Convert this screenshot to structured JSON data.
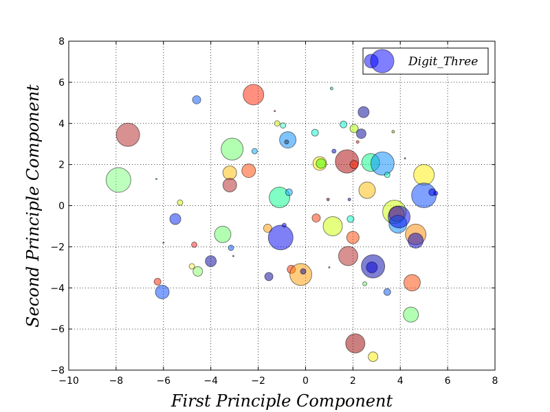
{
  "chart_data": {
    "type": "scatter",
    "xlabel": "First Principle Component",
    "ylabel": "Second Principle Component",
    "xlim": [
      -10,
      8
    ],
    "ylim": [
      -8,
      8
    ],
    "xticks": [
      "−10",
      "−8",
      "−6",
      "−4",
      "−2",
      "0",
      "2",
      "4",
      "6",
      "8"
    ],
    "yticks": [
      "−8",
      "−6",
      "−4",
      "−2",
      "0",
      "2",
      "4",
      "6",
      "8"
    ],
    "grid": true,
    "legend": {
      "position": "top-right",
      "entries": [
        "Digit_Three"
      ]
    },
    "legend_color": "#0000ff",
    "points": [
      {
        "x": -7.9,
        "y": 1.25,
        "s": 18,
        "c": "#7cff7c"
      },
      {
        "x": -7.5,
        "y": 3.45,
        "s": 17,
        "c": "#b22222"
      },
      {
        "x": -6.3,
        "y": 1.3,
        "s": 1,
        "c": "#20b2aa"
      },
      {
        "x": -6.25,
        "y": -3.7,
        "s": 5,
        "c": "#ff2200"
      },
      {
        "x": -6.05,
        "y": -4.2,
        "s": 10,
        "c": "#0044ff"
      },
      {
        "x": -6.0,
        "y": -1.8,
        "s": 1,
        "c": "#555555"
      },
      {
        "x": -5.5,
        "y": -0.65,
        "s": 8,
        "c": "#0022ee"
      },
      {
        "x": -5.3,
        "y": 0.15,
        "s": 4,
        "c": "#ccff00"
      },
      {
        "x": -4.8,
        "y": -2.95,
        "s": 4,
        "c": "#ffff44"
      },
      {
        "x": -4.7,
        "y": -1.9,
        "s": 4,
        "c": "#ff2222"
      },
      {
        "x": -4.6,
        "y": 5.15,
        "s": 6,
        "c": "#0055ff"
      },
      {
        "x": -4.55,
        "y": -3.2,
        "s": 7,
        "c": "#88ff66"
      },
      {
        "x": -4.0,
        "y": -2.7,
        "s": 8,
        "c": "#000099"
      },
      {
        "x": -3.5,
        "y": -1.4,
        "s": 12,
        "c": "#66ff66"
      },
      {
        "x": -3.15,
        "y": -2.05,
        "s": 4,
        "c": "#0055ff"
      },
      {
        "x": -3.05,
        "y": -2.45,
        "s": 1,
        "c": "#333333"
      },
      {
        "x": -3.2,
        "y": 1.6,
        "s": 10,
        "c": "#ffbb00"
      },
      {
        "x": -3.2,
        "y": 1.0,
        "s": 10,
        "c": "#b22222"
      },
      {
        "x": -3.1,
        "y": 2.75,
        "s": 16,
        "c": "#66ff66"
      },
      {
        "x": -2.4,
        "y": 1.7,
        "s": 10,
        "c": "#ff4400"
      },
      {
        "x": -2.2,
        "y": 5.4,
        "s": 15,
        "c": "#ff2200"
      },
      {
        "x": -2.15,
        "y": 2.65,
        "s": 4,
        "c": "#00aaff"
      },
      {
        "x": -1.6,
        "y": -1.1,
        "s": 6,
        "c": "#ff9900"
      },
      {
        "x": -1.55,
        "y": -3.45,
        "s": 6,
        "c": "#000099"
      },
      {
        "x": -1.3,
        "y": 4.6,
        "s": 1,
        "c": "#aa0000"
      },
      {
        "x": -1.2,
        "y": 4.0,
        "s": 4,
        "c": "#ccff00"
      },
      {
        "x": -1.1,
        "y": 0.4,
        "s": 15,
        "c": "#00ff88"
      },
      {
        "x": -1.05,
        "y": -1.55,
        "s": 18,
        "c": "#0000ee"
      },
      {
        "x": -0.95,
        "y": 3.9,
        "s": 4,
        "c": "#33ffcc"
      },
      {
        "x": -0.9,
        "y": -0.95,
        "s": 3,
        "c": "#0000ff"
      },
      {
        "x": -0.75,
        "y": 3.2,
        "s": 12,
        "c": "#0088ff"
      },
      {
        "x": -0.8,
        "y": 3.1,
        "s": 3,
        "c": "#333333"
      },
      {
        "x": -0.7,
        "y": 0.65,
        "s": 5,
        "c": "#00aaff"
      },
      {
        "x": -0.6,
        "y": -3.1,
        "s": 6,
        "c": "#ff2200"
      },
      {
        "x": -0.2,
        "y": -3.35,
        "s": 16,
        "c": "#ff9900"
      },
      {
        "x": -0.1,
        "y": -3.2,
        "s": 4,
        "c": "#0000aa"
      },
      {
        "x": 0.4,
        "y": 3.55,
        "s": 5,
        "c": "#00ffcc"
      },
      {
        "x": 0.45,
        "y": -0.6,
        "s": 6,
        "c": "#ff3300"
      },
      {
        "x": 0.6,
        "y": 2.05,
        "s": 10,
        "c": "#ffee00"
      },
      {
        "x": 0.65,
        "y": 2.05,
        "s": 7,
        "c": "#33ff00"
      },
      {
        "x": 0.95,
        "y": 0.3,
        "s": 2,
        "c": "#660000"
      },
      {
        "x": 1.0,
        "y": -3.0,
        "s": 1,
        "c": "#333333"
      },
      {
        "x": 1.1,
        "y": 5.7,
        "s": 2,
        "c": "#00cc88"
      },
      {
        "x": 1.15,
        "y": -1.0,
        "s": 14,
        "c": "#ccff00"
      },
      {
        "x": 1.2,
        "y": 2.65,
        "s": 3,
        "c": "#0000cc"
      },
      {
        "x": 1.6,
        "y": 3.95,
        "s": 5,
        "c": "#00ffcc"
      },
      {
        "x": 1.75,
        "y": 2.15,
        "s": 17,
        "c": "#aa0000"
      },
      {
        "x": 1.8,
        "y": -2.45,
        "s": 14,
        "c": "#b22222"
      },
      {
        "x": 1.9,
        "y": -0.65,
        "s": 5,
        "c": "#00ffcc"
      },
      {
        "x": 1.85,
        "y": 0.3,
        "s": 2,
        "c": "#0000aa"
      },
      {
        "x": 2.0,
        "y": -1.55,
        "s": 9,
        "c": "#ff4400"
      },
      {
        "x": 2.05,
        "y": 3.75,
        "s": 6,
        "c": "#aaff00"
      },
      {
        "x": 2.05,
        "y": 2.0,
        "s": 6,
        "c": "#ff2200"
      },
      {
        "x": 2.1,
        "y": -6.7,
        "s": 14,
        "c": "#990000"
      },
      {
        "x": 2.2,
        "y": 3.1,
        "s": 2,
        "c": "#ff2200"
      },
      {
        "x": 2.35,
        "y": 3.5,
        "s": 7,
        "c": "#000099"
      },
      {
        "x": 2.45,
        "y": 4.55,
        "s": 8,
        "c": "#000099"
      },
      {
        "x": 2.5,
        "y": -3.8,
        "s": 3,
        "c": "#66ff66"
      },
      {
        "x": 2.6,
        "y": 0.75,
        "s": 12,
        "c": "#ffbb00"
      },
      {
        "x": 2.75,
        "y": 2.1,
        "s": 13,
        "c": "#00ff88"
      },
      {
        "x": 2.8,
        "y": -3.0,
        "s": 8,
        "c": "#0000ff"
      },
      {
        "x": 2.85,
        "y": -2.95,
        "s": 17,
        "c": "#0000aa"
      },
      {
        "x": 2.85,
        "y": -7.35,
        "s": 7,
        "c": "#ffee00"
      },
      {
        "x": 3.25,
        "y": 2.05,
        "s": 17,
        "c": "#0088ff"
      },
      {
        "x": 3.45,
        "y": -4.2,
        "s": 5,
        "c": "#0055ff"
      },
      {
        "x": 3.45,
        "y": 1.5,
        "s": 4,
        "c": "#00ffcc"
      },
      {
        "x": 3.7,
        "y": 3.6,
        "s": 2,
        "c": "#999900"
      },
      {
        "x": 3.75,
        "y": -0.3,
        "s": 17,
        "c": "#ccff00"
      },
      {
        "x": 3.85,
        "y": -0.4,
        "s": 11,
        "c": "#ff6600"
      },
      {
        "x": 3.9,
        "y": -0.9,
        "s": 13,
        "c": "#0088ff"
      },
      {
        "x": 3.95,
        "y": -0.55,
        "s": 16,
        "c": "#0000ee"
      },
      {
        "x": 4.2,
        "y": 2.3,
        "s": 1,
        "c": "#333333"
      },
      {
        "x": 4.45,
        "y": -5.3,
        "s": 11,
        "c": "#66ff66"
      },
      {
        "x": 4.5,
        "y": -3.75,
        "s": 12,
        "c": "#ff4400"
      },
      {
        "x": 4.65,
        "y": -1.4,
        "s": 15,
        "c": "#ff8800"
      },
      {
        "x": 4.65,
        "y": -1.7,
        "s": 11,
        "c": "#0000cc"
      },
      {
        "x": 5.0,
        "y": 1.5,
        "s": 15,
        "c": "#ffee00"
      },
      {
        "x": 5.0,
        "y": 0.5,
        "s": 18,
        "c": "#0044ff"
      },
      {
        "x": 5.35,
        "y": 0.65,
        "s": 5,
        "c": "#0000ff"
      },
      {
        "x": 5.5,
        "y": 0.6,
        "s": 3,
        "c": "#0000ff"
      }
    ]
  }
}
